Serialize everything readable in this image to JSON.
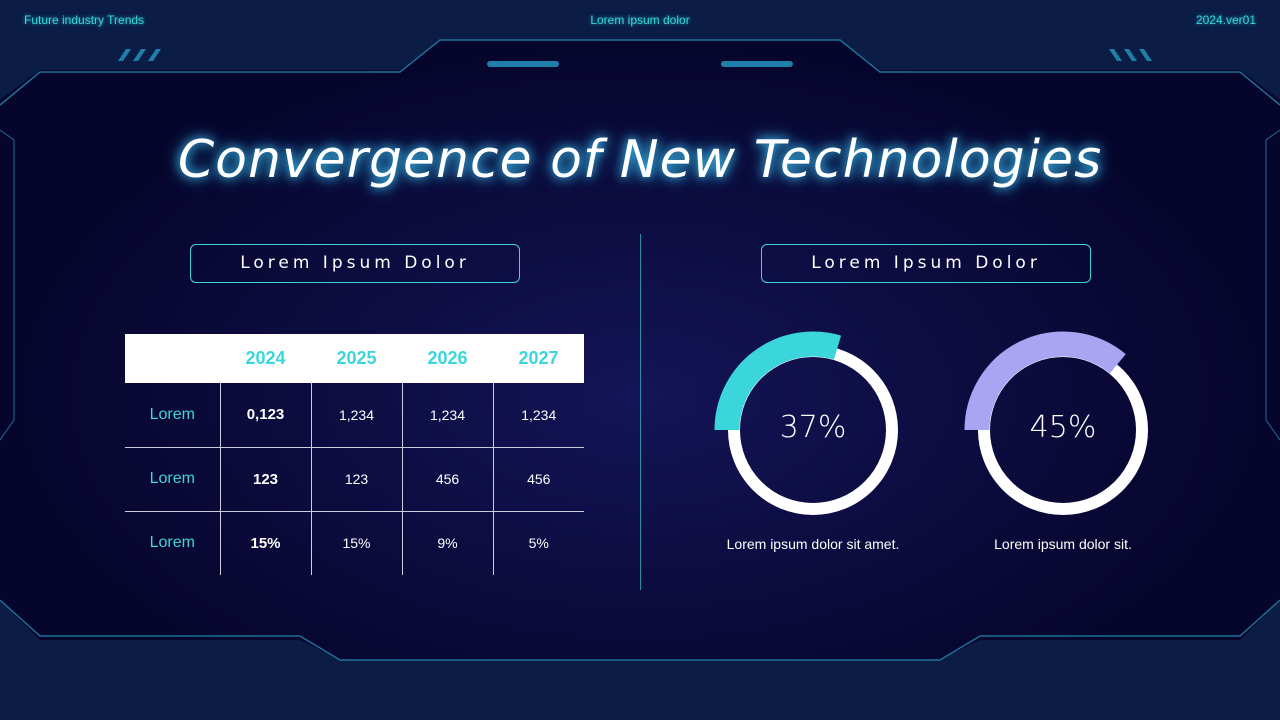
{
  "header": {
    "left": "Future industry Trends",
    "center": "Lorem ipsum dolor",
    "right": "2024.ver01"
  },
  "title": "Convergence of New Technologies",
  "left_panel": {
    "label": "Lorem Ipsum Dolor"
  },
  "right_panel": {
    "label": "Lorem Ipsum Dolor"
  },
  "colors": {
    "accent": "#3ad6dc",
    "lavender": "#a9a5f2",
    "background": "#06052b"
  },
  "chart_data": [
    {
      "type": "table",
      "columns": [
        "",
        "2024",
        "2025",
        "2026",
        "2027"
      ],
      "rows": [
        [
          "Lorem",
          "0,123",
          "1,234",
          "1,234",
          "1,234"
        ],
        [
          "Lorem",
          "123",
          "123",
          "456",
          "456"
        ],
        [
          "Lorem",
          "15%",
          "15%",
          "9%",
          "5%"
        ]
      ]
    },
    {
      "type": "pie",
      "variant": "donut",
      "value": 37,
      "label": "37%",
      "caption": "Lorem ipsum dolor sit amet.",
      "color": "#3ad6dc"
    },
    {
      "type": "pie",
      "variant": "donut",
      "value": 45,
      "label": "45%",
      "caption": "Lorem ipsum dolor sit.",
      "color": "#a9a5f2"
    }
  ]
}
